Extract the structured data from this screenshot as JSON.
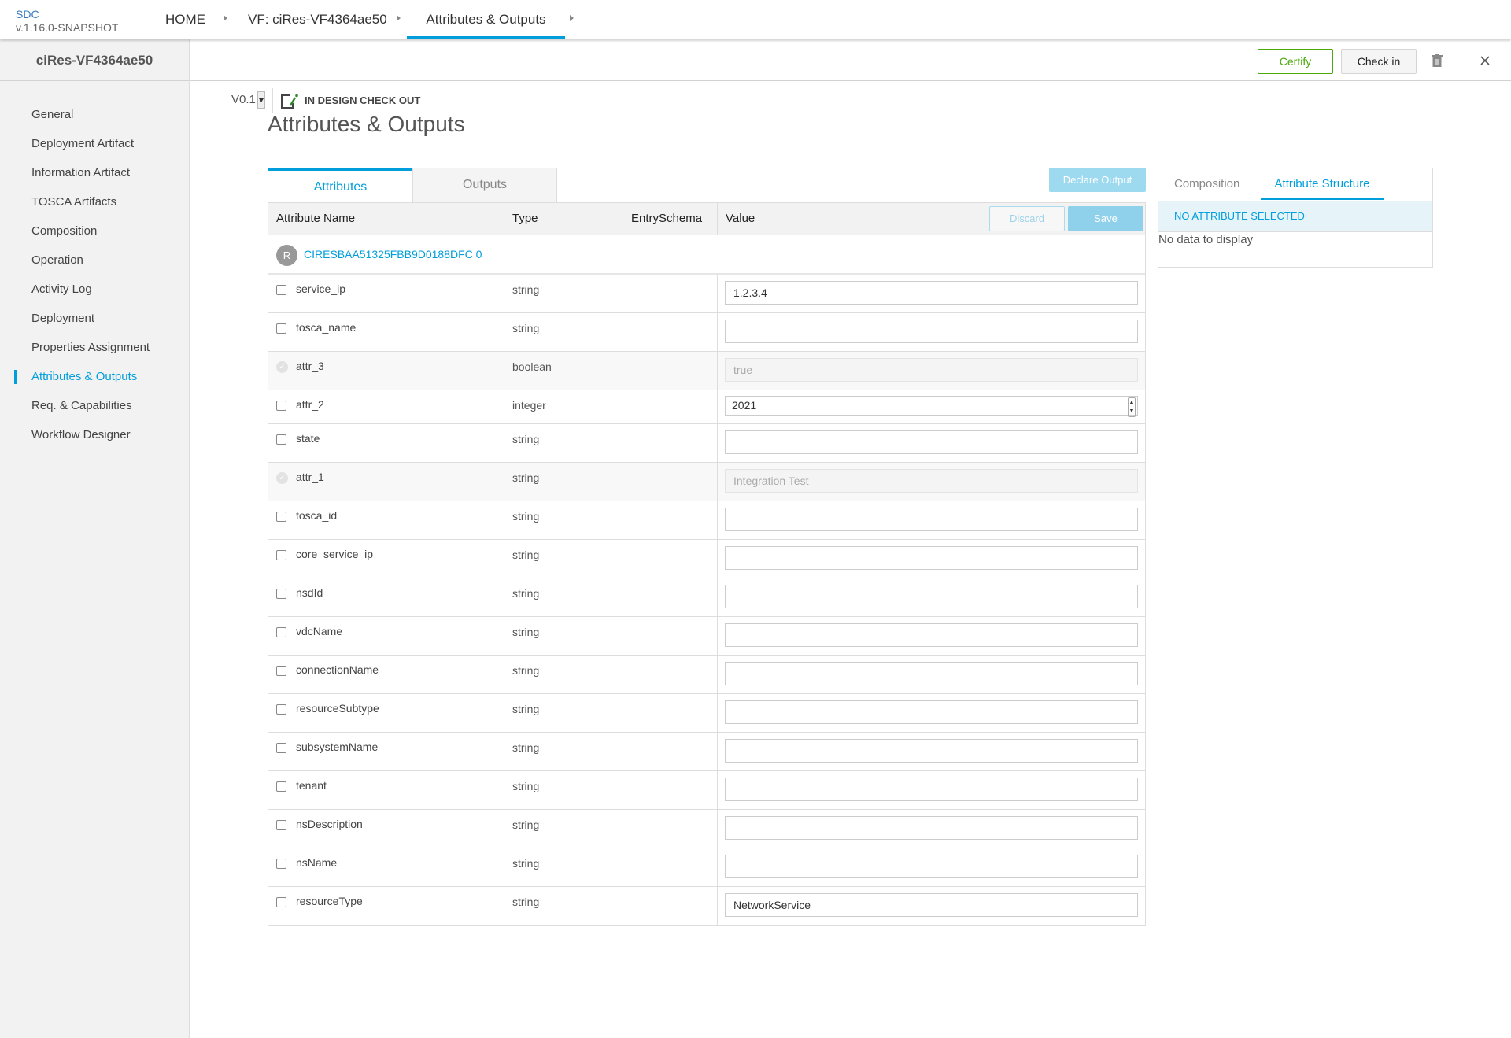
{
  "app": {
    "name": "SDC",
    "version": "v.1.16.0-SNAPSHOT"
  },
  "breadcrumbs": [
    {
      "label": "HOME"
    },
    {
      "label": "VF: ciRes-VF4364ae50"
    },
    {
      "label": "Attributes & Outputs",
      "active": true
    }
  ],
  "sidebar": {
    "title": "ciRes-VF4364ae50",
    "selected": "Attributes & Outputs",
    "items": [
      {
        "label": "General"
      },
      {
        "label": "Deployment Artifact"
      },
      {
        "label": "Information Artifact"
      },
      {
        "label": "TOSCA Artifacts"
      },
      {
        "label": "Composition"
      },
      {
        "label": "Operation"
      },
      {
        "label": "Activity Log"
      },
      {
        "label": "Deployment"
      },
      {
        "label": "Properties Assignment"
      },
      {
        "label": "Attributes & Outputs"
      },
      {
        "label": "Req. & Capabilities"
      },
      {
        "label": "Workflow Designer"
      }
    ]
  },
  "actionbar": {
    "version": "V0.1",
    "status": "IN DESIGN CHECK OUT",
    "certify": "Certify",
    "checkin": "Check in",
    "delete_icon": "trash-icon",
    "close_icon": "close-icon"
  },
  "colors": {
    "accent": "#009fdb",
    "certify": "#4ca90c"
  },
  "main": {
    "title": "Attributes & Outputs",
    "tabs": [
      {
        "label": "Attributes",
        "active": true
      },
      {
        "label": "Outputs"
      }
    ],
    "declare_output": "Declare Output",
    "table": {
      "columns": [
        "Attribute Name",
        "Type",
        "EntrySchema",
        "Value"
      ],
      "discard": "Discard",
      "save": "Save",
      "group": {
        "avatar": "R",
        "name": "CIRESBAA51325FBB9D0188DFC 0"
      },
      "rows": [
        {
          "name": "service_ip",
          "type": "string",
          "value": "1.2.3.4"
        },
        {
          "name": "tosca_name",
          "type": "string",
          "value": ""
        },
        {
          "name": "attr_3",
          "type": "boolean",
          "value": "true",
          "readonly": true
        },
        {
          "name": "attr_2",
          "type": "integer",
          "value": "2021",
          "number": true
        },
        {
          "name": "state",
          "type": "string",
          "value": ""
        },
        {
          "name": "attr_1",
          "type": "string",
          "value": "Integration Test",
          "readonly": true
        },
        {
          "name": "tosca_id",
          "type": "string",
          "value": ""
        },
        {
          "name": "core_service_ip",
          "type": "string",
          "value": ""
        },
        {
          "name": "nsdId",
          "type": "string",
          "value": ""
        },
        {
          "name": "vdcName",
          "type": "string",
          "value": ""
        },
        {
          "name": "connectionName",
          "type": "string",
          "value": ""
        },
        {
          "name": "resourceSubtype",
          "type": "string",
          "value": ""
        },
        {
          "name": "subsystemName",
          "type": "string",
          "value": ""
        },
        {
          "name": "tenant",
          "type": "string",
          "value": ""
        },
        {
          "name": "nsDescription",
          "type": "string",
          "value": ""
        },
        {
          "name": "nsName",
          "type": "string",
          "value": ""
        },
        {
          "name": "resourceType",
          "type": "string",
          "value": "NetworkService"
        }
      ]
    }
  },
  "right_panel": {
    "tabs": [
      {
        "label": "Composition"
      },
      {
        "label": "Attribute Structure",
        "active": true
      }
    ],
    "selection": "NO ATTRIBUTE SELECTED",
    "empty": "No data to display"
  }
}
